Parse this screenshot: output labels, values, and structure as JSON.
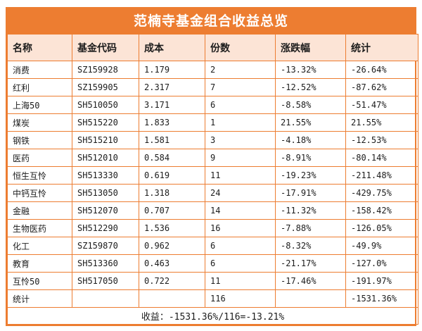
{
  "title": "范楠寺基金组合收益总览",
  "table": {
    "columns": [
      "名称",
      "基金代码",
      "成本",
      "份数",
      "涨跌幅",
      "统计"
    ],
    "rows": [
      [
        "消费",
        "SZ159928",
        "1.179",
        "2",
        "-13.32%",
        "-26.64%"
      ],
      [
        "红利",
        "SZ159905",
        "2.317",
        "7",
        "-12.52%",
        "-87.62%"
      ],
      [
        "上海50",
        "SH510050",
        "3.171",
        "6",
        "-8.58%",
        "-51.47%"
      ],
      [
        "煤炭",
        "SH515220",
        "1.833",
        "1",
        "21.55%",
        "21.55%"
      ],
      [
        "钢铁",
        "SH515210",
        "1.581",
        "3",
        "-4.18%",
        "-12.53%"
      ],
      [
        "医药",
        "SH512010",
        "0.584",
        "9",
        "-8.91%",
        "-80.14%"
      ],
      [
        "恒生互怜",
        "SH513330",
        "0.619",
        "11",
        "-19.23%",
        "-211.48%"
      ],
      [
        "中钙互怜",
        "SH513050",
        "1.318",
        "24",
        "-17.91%",
        "-429.75%"
      ],
      [
        "金融",
        "SH512070",
        "0.707",
        "14",
        "-11.32%",
        "-158.42%"
      ],
      [
        "生物医药",
        "SH512290",
        "1.536",
        "16",
        "-7.88%",
        "-126.05%"
      ],
      [
        "化工",
        "SZ159870",
        "0.962",
        "6",
        "-8.32%",
        "-49.9%"
      ],
      [
        "教育",
        "SH513360",
        "0.463",
        "6",
        "-21.17%",
        "-127.0%"
      ],
      [
        "互怜50",
        "SH517050",
        "0.722",
        "11",
        "-17.46%",
        "-191.97%"
      ]
    ]
  },
  "summary_row": [
    "统计",
    "",
    "",
    "116",
    "",
    "-1531.36%"
  ],
  "footer_text": "收益：-1531.36%/116=-13.21%",
  "colors": {
    "accent_orange": "#ed7d31",
    "header_background": "#fce4d6",
    "title_text": "#ffffff",
    "body_text": "#1c1c1c"
  },
  "chart_data": {
    "type": "table",
    "title": "范楠寺基金组合收益总览",
    "columns": [
      "名称",
      "基金代码",
      "成本",
      "份数",
      "涨跌幅",
      "统计"
    ],
    "rows": [
      {
        "name": "消费",
        "code": "SZ159928",
        "cost": 1.179,
        "shares": 2,
        "change_pct": -13.32,
        "stat_pct": -26.64
      },
      {
        "name": "红利",
        "code": "SZ159905",
        "cost": 2.317,
        "shares": 7,
        "change_pct": -12.52,
        "stat_pct": -87.62
      },
      {
        "name": "上海50",
        "code": "SH510050",
        "cost": 3.171,
        "shares": 6,
        "change_pct": -8.58,
        "stat_pct": -51.47
      },
      {
        "name": "煤炭",
        "code": "SH515220",
        "cost": 1.833,
        "shares": 1,
        "change_pct": 21.55,
        "stat_pct": 21.55
      },
      {
        "name": "钢铁",
        "code": "SH515210",
        "cost": 1.581,
        "shares": 3,
        "change_pct": -4.18,
        "stat_pct": -12.53
      },
      {
        "name": "医药",
        "code": "SH512010",
        "cost": 0.584,
        "shares": 9,
        "change_pct": -8.91,
        "stat_pct": -80.14
      },
      {
        "name": "恒生互怜",
        "code": "SH513330",
        "cost": 0.619,
        "shares": 11,
        "change_pct": -19.23,
        "stat_pct": -211.48
      },
      {
        "name": "中钙互怜",
        "code": "SH513050",
        "cost": 1.318,
        "shares": 24,
        "change_pct": -17.91,
        "stat_pct": -429.75
      },
      {
        "name": "金融",
        "code": "SH512070",
        "cost": 0.707,
        "shares": 14,
        "change_pct": -11.32,
        "stat_pct": -158.42
      },
      {
        "name": "生物医药",
        "code": "SH512290",
        "cost": 1.536,
        "shares": 16,
        "change_pct": -7.88,
        "stat_pct": -126.05
      },
      {
        "name": "化工",
        "code": "SZ159870",
        "cost": 0.962,
        "shares": 6,
        "change_pct": -8.32,
        "stat_pct": -49.9
      },
      {
        "name": "教育",
        "code": "SH513360",
        "cost": 0.463,
        "shares": 6,
        "change_pct": -21.17,
        "stat_pct": -127.0
      },
      {
        "name": "互怜50",
        "code": "SH517050",
        "cost": 0.722,
        "shares": 11,
        "change_pct": -17.46,
        "stat_pct": -191.97
      }
    ],
    "totals": {
      "label": "统计",
      "shares": 116,
      "stat_pct": -1531.36
    },
    "summary_formula": "收益：-1531.36%/116=-13.21%"
  }
}
